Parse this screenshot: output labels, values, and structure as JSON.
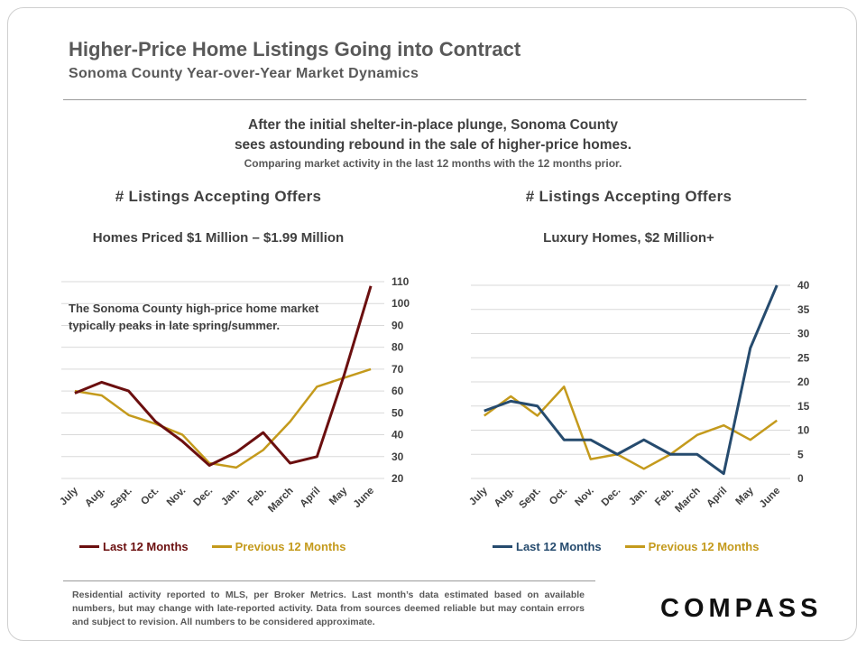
{
  "header": {
    "title": "Higher-Price Home Listings Going into Contract",
    "subtitle": "Sonoma County Year-over-Year Market Dynamics"
  },
  "headline": {
    "line1": "After the initial shelter-in-place plunge, Sonoma County",
    "line2": "sees astounding rebound in the sale of higher-price homes.",
    "note": "Comparing market activity in the last 12 months with the 12 months prior."
  },
  "annotation": {
    "line1": "The Sonoma County high-price home market",
    "line2": "typically peaks in late spring/summer."
  },
  "footer": {
    "text": "Residential activity reported to MLS, per Broker Metrics. Last month’s data estimated based on available numbers, but may change with late-reported activity. Data from sources deemed reliable but may contain errors and subject to revision. All numbers to be considered approximate.",
    "logo": "COMPASS"
  },
  "colors": {
    "left_last": "#6b0f0f",
    "right_last": "#264b6e",
    "previous": "#c49a1c",
    "grid": "#d9d9d9",
    "text": "#404040"
  },
  "chart_data": [
    {
      "type": "line",
      "title": "# Listings Accepting Offers",
      "subtitle": "Homes Priced $1 Million – $1.99 Million",
      "categories": [
        "July",
        "Aug.",
        "Sept.",
        "Oct.",
        "Nov.",
        "Dec.",
        "Jan.",
        "Feb.",
        "March",
        "April",
        "May",
        "June"
      ],
      "series": [
        {
          "name": "Last 12 Months",
          "values": [
            59,
            64,
            60,
            46,
            37,
            26,
            32,
            41,
            27,
            30,
            67,
            108
          ]
        },
        {
          "name": "Previous 12 Months",
          "values": [
            60,
            58,
            49,
            45,
            40,
            27,
            25,
            33,
            46,
            62,
            66,
            70
          ]
        }
      ],
      "ylim": [
        20,
        110
      ],
      "yticks": [
        20,
        30,
        40,
        50,
        60,
        70,
        80,
        90,
        100,
        110
      ],
      "y_axis": "right",
      "grid": true,
      "legend": "bottom"
    },
    {
      "type": "line",
      "title": "# Listings Accepting Offers",
      "subtitle": "Luxury Homes, $2 Million+",
      "categories": [
        "July",
        "Aug.",
        "Sept.",
        "Oct.",
        "Nov.",
        "Dec.",
        "Jan.",
        "Feb.",
        "March",
        "April",
        "May",
        "June"
      ],
      "series": [
        {
          "name": "Last 12 Months",
          "values": [
            14,
            16,
            15,
            8,
            8,
            5,
            8,
            5,
            5,
            1,
            27,
            40
          ]
        },
        {
          "name": "Previous 12 Months",
          "values": [
            13,
            17,
            13,
            19,
            4,
            5,
            2,
            5,
            9,
            11,
            8,
            12
          ]
        }
      ],
      "ylim": [
        0,
        40
      ],
      "yticks": [
        0,
        5,
        10,
        15,
        20,
        25,
        30,
        35,
        40
      ],
      "y_axis": "right",
      "grid": true,
      "legend": "bottom"
    }
  ]
}
